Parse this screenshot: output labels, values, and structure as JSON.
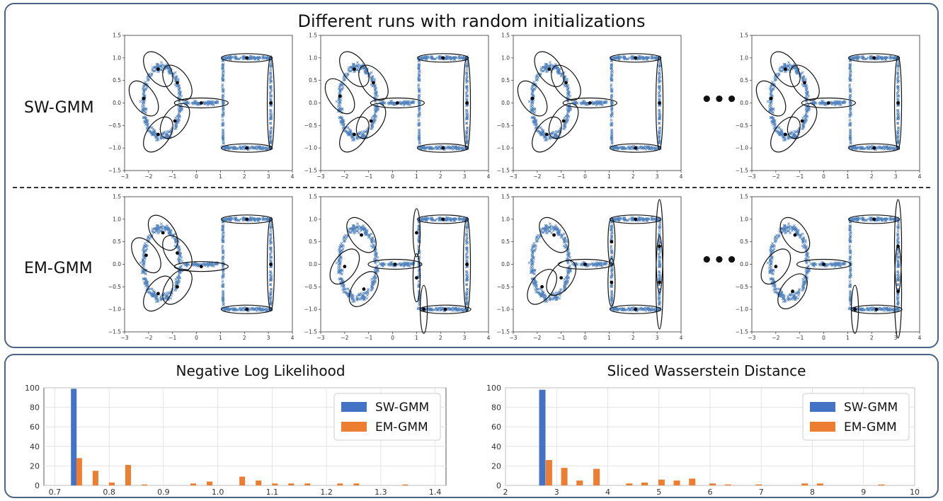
{
  "figure": {
    "title": "Different runs with random initializations",
    "rows": [
      {
        "label": "SW-GMM"
      },
      {
        "label": "EM-GMM"
      }
    ],
    "ellipsis": "•••",
    "scatter_axes": {
      "x_ticks": [
        "−3",
        "−2",
        "−1",
        "0",
        "1",
        "2",
        "3",
        "4"
      ],
      "y_ticks": [
        "1.5",
        "1.0",
        "0.5",
        "0.0",
        "−0.5",
        "−1.0",
        "−1.5"
      ],
      "xlim": [
        -3,
        4
      ],
      "ylim": [
        -1.5,
        1.5
      ]
    },
    "colors": {
      "points": "#4f81bd",
      "sw": "#4472c4",
      "em": "#ed7d31",
      "frame": "#4a6485"
    }
  },
  "chart_data": [
    {
      "type": "scatter",
      "row": "SW-GMM",
      "panels": [
        {
          "means": [
            [
              -1.6,
              0.75
            ],
            [
              -2.2,
              0.1
            ],
            [
              -1.6,
              -0.7
            ],
            [
              -0.9,
              -0.4
            ],
            [
              -0.8,
              0.45
            ],
            [
              0.2,
              0.0
            ],
            [
              2.1,
              -1.0
            ],
            [
              2.1,
              1.0
            ],
            [
              3.1,
              0.0
            ]
          ]
        },
        {
          "means": [
            [
              -1.6,
              0.75
            ],
            [
              -2.2,
              0.15
            ],
            [
              -1.6,
              -0.7
            ],
            [
              -0.9,
              -0.4
            ],
            [
              -0.8,
              0.45
            ],
            [
              0.2,
              0.0
            ],
            [
              2.1,
              -1.0
            ],
            [
              2.1,
              1.0
            ],
            [
              3.1,
              0.0
            ]
          ]
        },
        {
          "means": [
            [
              -1.5,
              0.75
            ],
            [
              -2.2,
              0.1
            ],
            [
              -1.6,
              -0.7
            ],
            [
              -0.9,
              -0.4
            ],
            [
              -0.8,
              0.45
            ],
            [
              0.2,
              0.0
            ],
            [
              2.1,
              -1.0
            ],
            [
              2.1,
              1.0
            ],
            [
              3.1,
              0.0
            ]
          ]
        },
        {
          "means": [
            [
              -1.6,
              0.75
            ],
            [
              -2.2,
              0.1
            ],
            [
              -1.6,
              -0.7
            ],
            [
              -0.9,
              -0.4
            ],
            [
              -0.8,
              0.45
            ],
            [
              0.2,
              0.0
            ],
            [
              2.1,
              -1.0
            ],
            [
              2.1,
              1.0
            ],
            [
              3.1,
              0.0
            ]
          ]
        }
      ]
    },
    {
      "type": "scatter",
      "row": "EM-GMM",
      "panels": [
        {
          "means": [
            [
              -1.4,
              0.7
            ],
            [
              -2.1,
              0.2
            ],
            [
              -1.6,
              -0.65
            ],
            [
              -0.8,
              -0.5
            ],
            [
              -0.8,
              0.25
            ],
            [
              0.2,
              -0.05
            ],
            [
              2.1,
              -1.0
            ],
            [
              2.1,
              1.0
            ],
            [
              3.1,
              0.0
            ]
          ]
        },
        {
          "means": [
            [
              -1.3,
              0.65
            ],
            [
              -2.0,
              -0.05
            ],
            [
              -1.2,
              -0.55
            ],
            [
              0.1,
              0.0
            ],
            [
              1.0,
              0.7
            ],
            [
              1.0,
              -0.3
            ],
            [
              1.3,
              -1.0
            ],
            [
              2.2,
              -1.0
            ],
            [
              2.1,
              1.0
            ],
            [
              3.1,
              0.0
            ]
          ]
        },
        {
          "means": [
            [
              -1.3,
              0.65
            ],
            [
              -1.8,
              -0.5
            ],
            [
              -1.0,
              -0.3
            ],
            [
              0.0,
              0.0
            ],
            [
              2.1,
              1.0
            ],
            [
              2.1,
              -1.0
            ],
            [
              1.1,
              0.5
            ],
            [
              1.1,
              -0.4
            ],
            [
              3.1,
              0.4
            ],
            [
              3.1,
              -0.4
            ]
          ]
        },
        {
          "means": [
            [
              -1.2,
              0.65
            ],
            [
              -2.0,
              -0.05
            ],
            [
              -1.3,
              -0.6
            ],
            [
              0.0,
              0.0
            ],
            [
              2.1,
              1.0
            ],
            [
              1.3,
              -1.0
            ],
            [
              2.2,
              -1.0
            ],
            [
              3.1,
              0.4
            ],
            [
              3.1,
              -0.6
            ]
          ]
        }
      ]
    },
    {
      "type": "bar",
      "title": "Negative Log Likelihood",
      "xlim": [
        0.68,
        1.42
      ],
      "ylim": [
        0,
        100
      ],
      "x_ticks": [
        "0.7",
        "0.8",
        "0.9",
        "1.0",
        "1.1",
        "1.2",
        "1.3",
        "1.4"
      ],
      "y_ticks": [
        "0",
        "20",
        "40",
        "60",
        "80",
        "100"
      ],
      "grid": true,
      "legend": "top-right",
      "series": [
        {
          "name": "SW-GMM",
          "color": "#4472c4",
          "x": [
            0.735
          ],
          "values": [
            99
          ]
        },
        {
          "name": "EM-GMM",
          "color": "#ed7d31",
          "x": [
            0.745,
            0.775,
            0.805,
            0.835,
            0.865,
            0.955,
            0.985,
            1.045,
            1.075,
            1.105,
            1.135,
            1.165,
            1.225,
            1.255,
            1.345
          ],
          "values": [
            28,
            15,
            3,
            21,
            1,
            2,
            4,
            9,
            5,
            2,
            2,
            2,
            2,
            2,
            1
          ]
        }
      ]
    },
    {
      "type": "bar",
      "title": "Sliced Wasserstein Distance",
      "xlim": [
        2.0,
        10.0
      ],
      "ylim": [
        0,
        100
      ],
      "x_ticks": [
        "2",
        "3",
        "4",
        "5",
        "6",
        "7",
        "8",
        "9",
        "10"
      ],
      "y_ticks": [
        "0",
        "20",
        "40",
        "60",
        "80",
        "100"
      ],
      "grid": true,
      "legend": "top-right",
      "series": [
        {
          "name": "SW-GMM",
          "color": "#4472c4",
          "x": [
            2.72
          ],
          "values": [
            98
          ]
        },
        {
          "name": "EM-GMM",
          "color": "#ed7d31",
          "x": [
            2.85,
            3.15,
            3.45,
            3.78,
            4.42,
            4.72,
            5.05,
            5.35,
            5.65,
            6.05,
            6.35,
            6.95,
            7.85,
            8.15,
            9.35
          ],
          "values": [
            26,
            18,
            5,
            17,
            2,
            3,
            6,
            5,
            7,
            2,
            1,
            1,
            2,
            2,
            1
          ]
        }
      ]
    }
  ]
}
